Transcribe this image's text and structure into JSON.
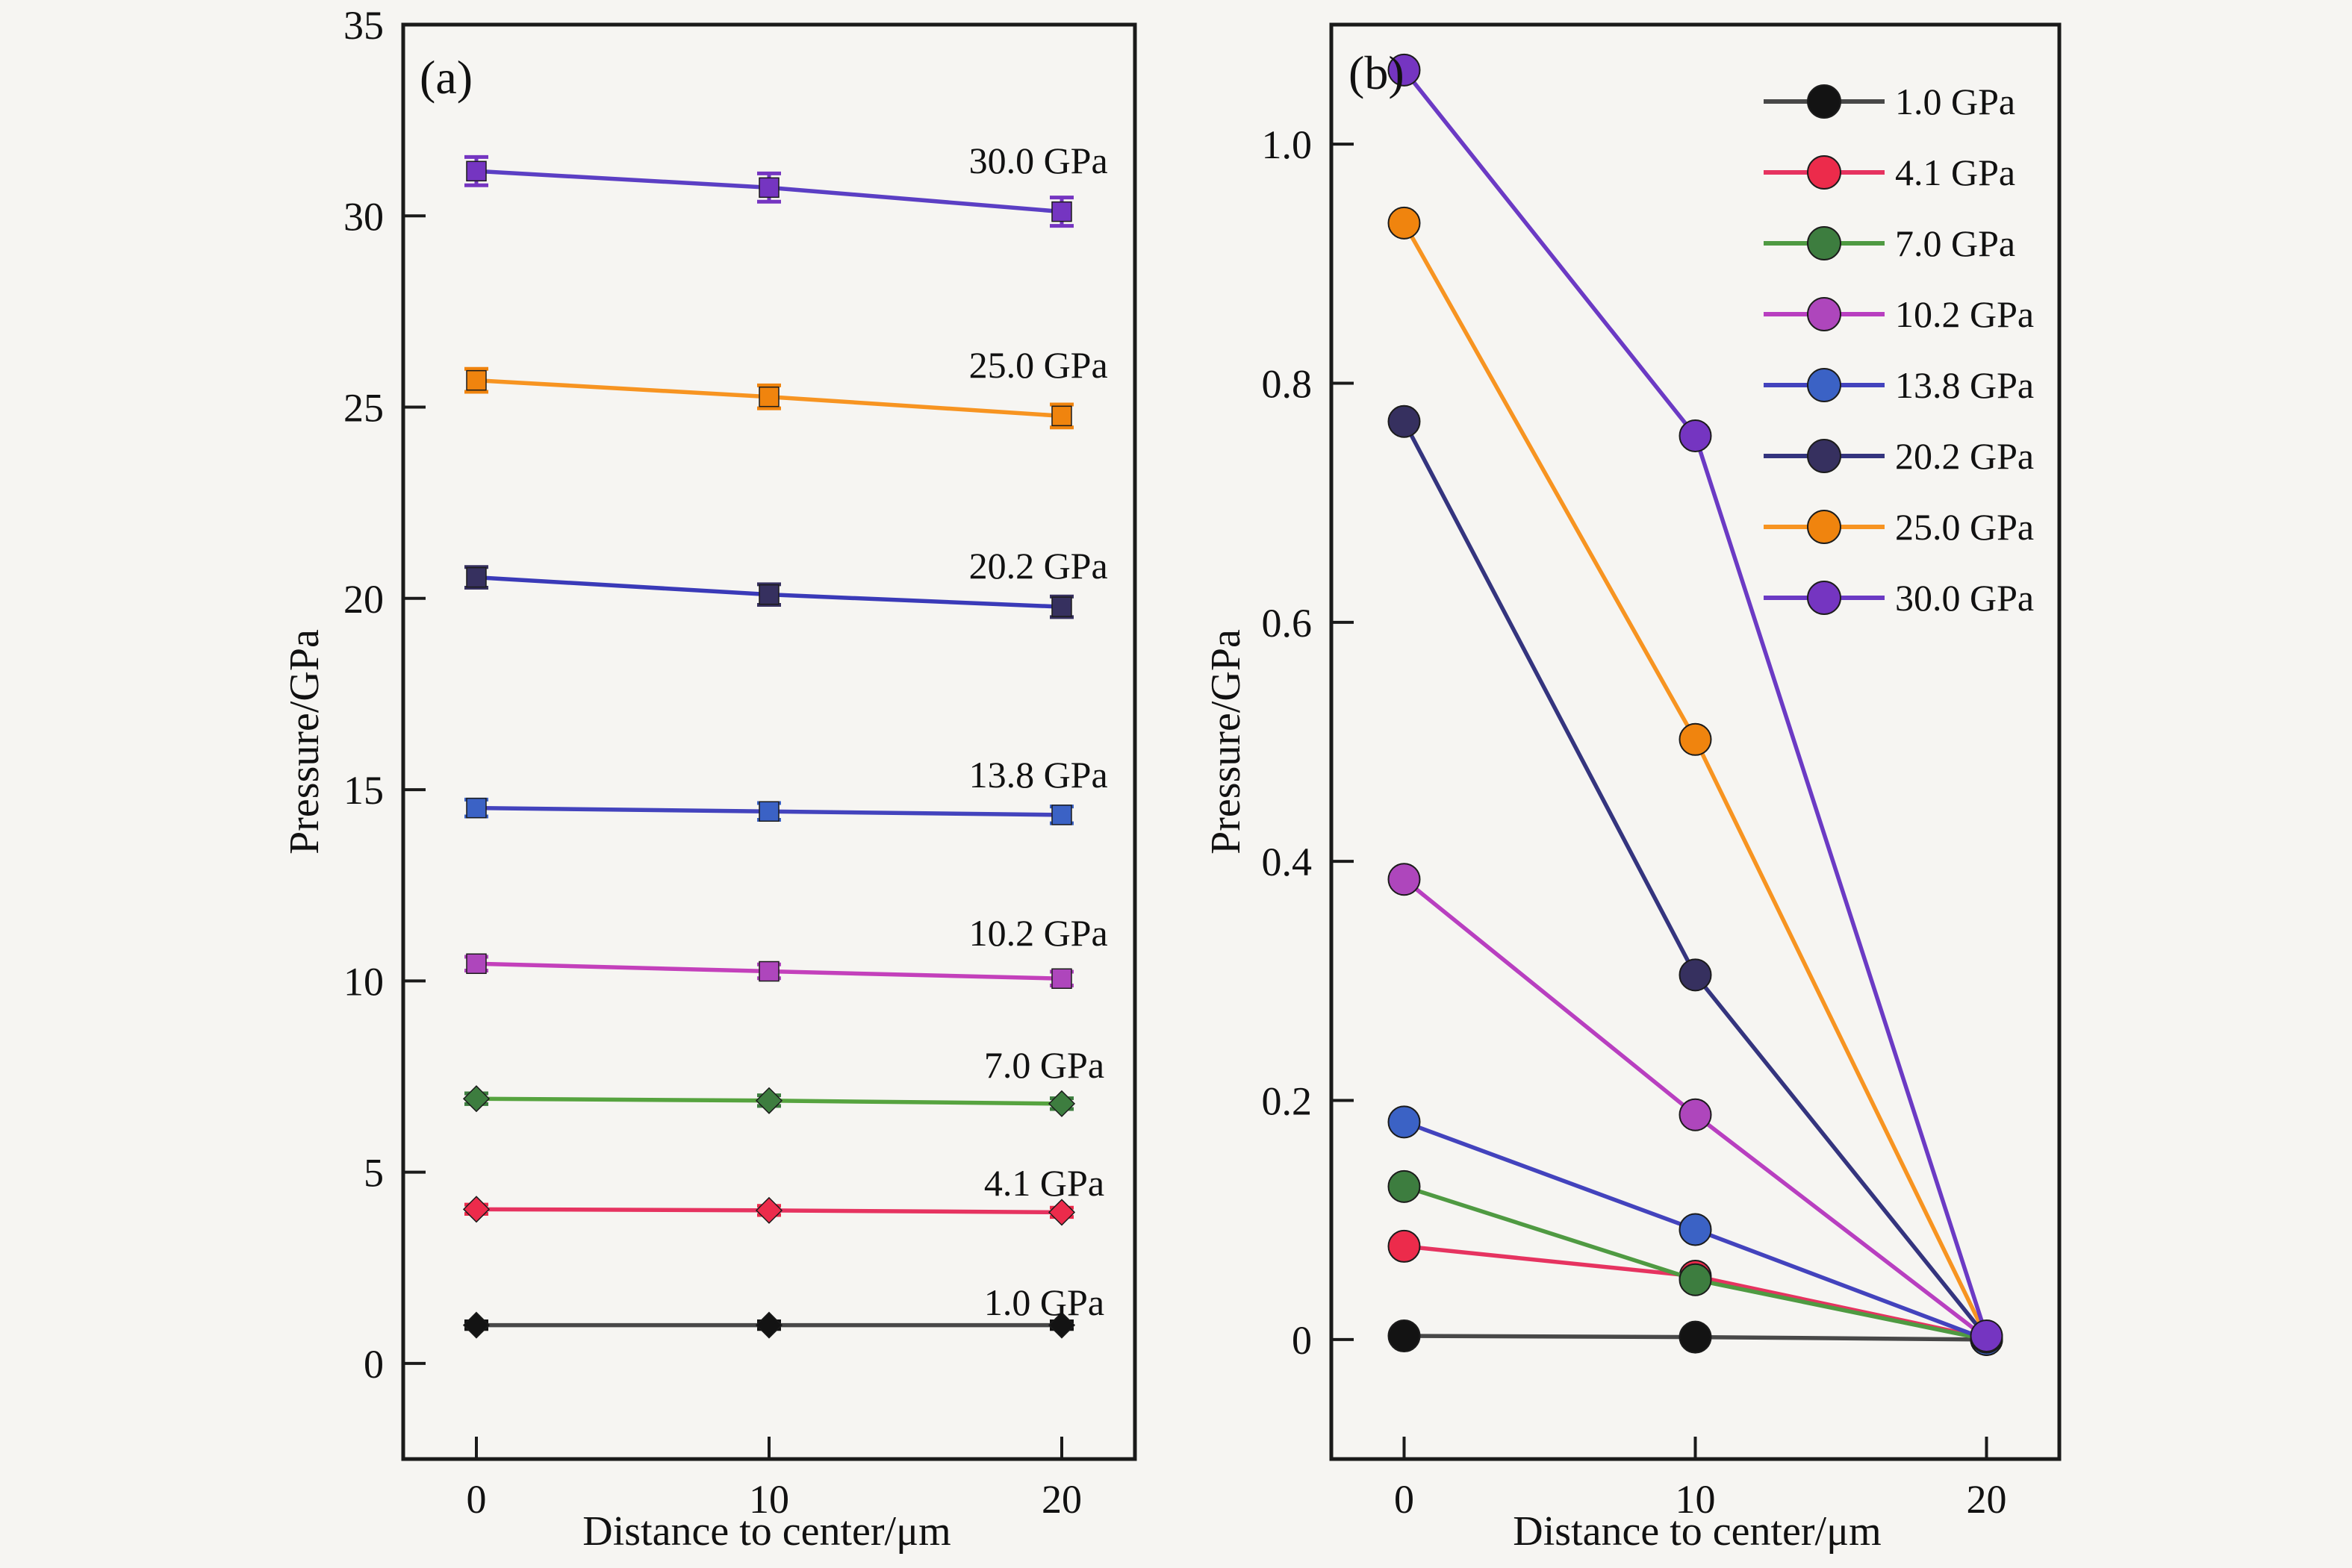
{
  "figure": {
    "background": "#f6f5f2",
    "panel_a_label": "(a)",
    "panel_b_label": "(b)",
    "axis_color": "#1a1a1a"
  },
  "chart_data": [
    {
      "type": "line",
      "panel": "a",
      "xlabel": "Distance to center/μm",
      "ylabel": "Pressure/GPa",
      "x": [
        0,
        10,
        20
      ],
      "xlim": [
        -2.5,
        22.5
      ],
      "ylim": [
        -2.5,
        35
      ],
      "xticks": [
        0,
        10,
        20
      ],
      "xticklabels": [
        "0",
        "10",
        "20"
      ],
      "yticks": [
        0,
        5,
        10,
        15,
        20,
        25,
        30,
        35
      ],
      "yticklabels": [
        "0",
        "5",
        "10",
        "15",
        "20",
        "25",
        "30",
        "35"
      ],
      "grid": false,
      "legend": "none",
      "error_bars": true,
      "series": [
        {
          "name": "1.0 GPa",
          "values": [
            1.0,
            1.0,
            1.0
          ],
          "err": 0.1,
          "marker_color": "#131313",
          "line_color": "#484848",
          "marker_shape": "diamond"
        },
        {
          "name": "4.1 GPa",
          "values": [
            4.03,
            4.0,
            3.95
          ],
          "err": 0.12,
          "marker_color": "#ec2b4b",
          "line_color": "#e63360",
          "marker_shape": "diamond"
        },
        {
          "name": "7.0 GPa",
          "values": [
            6.92,
            6.87,
            6.79
          ],
          "err": 0.14,
          "marker_color": "#3d7d3f",
          "line_color": "#56a33f",
          "marker_shape": "diamond"
        },
        {
          "name": "10.2 GPa",
          "values": [
            10.45,
            10.25,
            10.06
          ],
          "err": 0.18,
          "marker_color": "#ae46bc",
          "line_color": "#c340bb",
          "marker_shape": "square"
        },
        {
          "name": "13.8 GPa",
          "values": [
            14.52,
            14.43,
            14.34
          ],
          "err": 0.22,
          "marker_color": "#3b62c5",
          "line_color": "#4343bd",
          "marker_shape": "square"
        },
        {
          "name": "20.2 GPa",
          "values": [
            20.55,
            20.1,
            19.78
          ],
          "err": 0.27,
          "marker_color": "#36305f",
          "line_color": "#3a3ab8",
          "marker_shape": "square"
        },
        {
          "name": "25.0 GPa",
          "values": [
            25.7,
            25.27,
            24.77
          ],
          "err": 0.3,
          "marker_color": "#f0840e",
          "line_color": "#f79421",
          "marker_shape": "square"
        },
        {
          "name": "30.0 GPa",
          "values": [
            31.17,
            30.74,
            30.11
          ],
          "err": 0.37,
          "marker_color": "#7535c1",
          "line_color": "#5b3fc4",
          "marker_shape": "square"
        }
      ],
      "annotations": [
        {
          "text": "30.0 GPa",
          "x": 19.2,
          "y": 31.45
        },
        {
          "text": "25.0 GPa",
          "x": 19.2,
          "y": 26.1
        },
        {
          "text": "20.2 GPa",
          "x": 19.2,
          "y": 20.85
        },
        {
          "text": "13.8 GPa",
          "x": 19.2,
          "y": 15.4
        },
        {
          "text": "10.2 GPa",
          "x": 19.2,
          "y": 11.25
        },
        {
          "text": "7.0 GPa",
          "x": 19.4,
          "y": 7.8
        },
        {
          "text": "4.1 GPa",
          "x": 19.4,
          "y": 4.72
        },
        {
          "text": "1.0 GPa",
          "x": 19.4,
          "y": 1.6
        }
      ]
    },
    {
      "type": "line",
      "panel": "b",
      "xlabel": "Distance to center/μm",
      "ylabel": "Pressure/GPa",
      "x": [
        0,
        10,
        20
      ],
      "xlim": [
        -2.5,
        22.5
      ],
      "ylim": [
        -0.1,
        1.1
      ],
      "xticks": [
        0,
        10,
        20
      ],
      "xticklabels": [
        "0",
        "10",
        "20"
      ],
      "yticks": [
        0,
        0.2,
        0.4,
        0.6,
        0.8,
        1.0
      ],
      "yticklabels": [
        "0",
        "0.2",
        "0.4",
        "0.6",
        "0.8",
        "1.0"
      ],
      "grid": false,
      "legend": "top-right",
      "error_bars": false,
      "series": [
        {
          "name": "1.0 GPa",
          "values": [
            0.003,
            0.002,
            0.0
          ],
          "marker_color": "#131313",
          "line_color": "#484848",
          "marker_shape": "circle"
        },
        {
          "name": "4.1 GPa",
          "values": [
            0.078,
            0.053,
            0.001
          ],
          "marker_color": "#ec2b4b",
          "line_color": "#e63360",
          "marker_shape": "circle"
        },
        {
          "name": "7.0 GPa",
          "values": [
            0.128,
            0.05,
            0.0
          ],
          "marker_color": "#3d7d3f",
          "line_color": "#4f9a42",
          "marker_shape": "circle"
        },
        {
          "name": "10.2 GPa",
          "values": [
            0.385,
            0.188,
            0.001
          ],
          "marker_color": "#ae46bc",
          "line_color": "#b83fc0",
          "marker_shape": "circle"
        },
        {
          "name": "13.8 GPa",
          "values": [
            0.182,
            0.092,
            0.0
          ],
          "marker_color": "#3b62c5",
          "line_color": "#4343bd",
          "marker_shape": "circle"
        },
        {
          "name": "20.2 GPa",
          "values": [
            0.768,
            0.305,
            0.002
          ],
          "marker_color": "#36305f",
          "line_color": "#34347e",
          "marker_shape": "circle"
        },
        {
          "name": "25.0 GPa",
          "values": [
            0.934,
            0.502,
            0.002
          ],
          "marker_color": "#f0840e",
          "line_color": "#f79421",
          "marker_shape": "circle"
        },
        {
          "name": "30.0 GPa",
          "values": [
            1.062,
            0.756,
            0.003
          ],
          "marker_color": "#7535c1",
          "line_color": "#6b3ac4",
          "marker_shape": "circle"
        }
      ]
    }
  ]
}
